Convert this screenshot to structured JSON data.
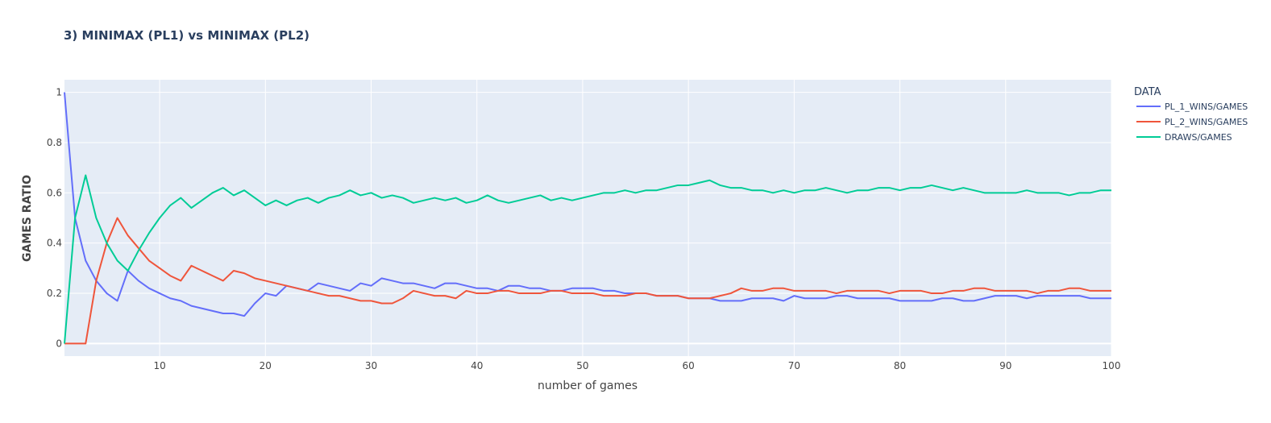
{
  "chart_data": {
    "type": "line",
    "title": "3) MINIMAX (PL1) vs MINIMAX (PL2)",
    "xlabel": "number of games",
    "ylabel": "GAMES RATIO",
    "xlim": [
      1,
      100
    ],
    "ylim": [
      -0.05,
      1.05
    ],
    "x_ticks": [
      10,
      20,
      30,
      40,
      50,
      60,
      70,
      80,
      90,
      100
    ],
    "y_ticks": [
      0,
      0.2,
      0.4,
      0.6,
      0.8,
      1
    ],
    "y_tick_labels": [
      "0",
      "0.2",
      "0.4",
      "0.6",
      "0.8",
      "1"
    ],
    "grid": true,
    "plot_background": "#e5ecf6",
    "legend_title": "DATA",
    "legend_position": "right",
    "x": [
      1,
      2,
      3,
      4,
      5,
      6,
      7,
      8,
      9,
      10,
      11,
      12,
      13,
      14,
      15,
      16,
      17,
      18,
      19,
      20,
      21,
      22,
      23,
      24,
      25,
      26,
      27,
      28,
      29,
      30,
      31,
      32,
      33,
      34,
      35,
      36,
      37,
      38,
      39,
      40,
      41,
      42,
      43,
      44,
      45,
      46,
      47,
      48,
      49,
      50,
      51,
      52,
      53,
      54,
      55,
      56,
      57,
      58,
      59,
      60,
      61,
      62,
      63,
      64,
      65,
      66,
      67,
      68,
      69,
      70,
      71,
      72,
      73,
      74,
      75,
      76,
      77,
      78,
      79,
      80,
      81,
      82,
      83,
      84,
      85,
      86,
      87,
      88,
      89,
      90,
      91,
      92,
      93,
      94,
      95,
      96,
      97,
      98,
      99,
      100
    ],
    "series": [
      {
        "name": "PL_1_WINS/GAMES",
        "color": "#636efa",
        "values": [
          1.0,
          0.5,
          0.33,
          0.25,
          0.2,
          0.17,
          0.29,
          0.25,
          0.22,
          0.2,
          0.18,
          0.17,
          0.15,
          0.14,
          0.13,
          0.12,
          0.12,
          0.11,
          0.16,
          0.2,
          0.19,
          0.23,
          0.22,
          0.21,
          0.24,
          0.23,
          0.22,
          0.21,
          0.24,
          0.23,
          0.26,
          0.25,
          0.24,
          0.24,
          0.23,
          0.22,
          0.24,
          0.24,
          0.23,
          0.22,
          0.22,
          0.21,
          0.23,
          0.23,
          0.22,
          0.22,
          0.21,
          0.21,
          0.22,
          0.22,
          0.22,
          0.21,
          0.21,
          0.2,
          0.2,
          0.2,
          0.19,
          0.19,
          0.19,
          0.18,
          0.18,
          0.18,
          0.17,
          0.17,
          0.17,
          0.18,
          0.18,
          0.18,
          0.17,
          0.19,
          0.18,
          0.18,
          0.18,
          0.19,
          0.19,
          0.18,
          0.18,
          0.18,
          0.18,
          0.17,
          0.17,
          0.17,
          0.17,
          0.18,
          0.18,
          0.17,
          0.17,
          0.18,
          0.19,
          0.19,
          0.19,
          0.18,
          0.19,
          0.19,
          0.19,
          0.19,
          0.19,
          0.18,
          0.18,
          0.18
        ]
      },
      {
        "name": "PL_2_WINS/GAMES",
        "color": "#ef553b",
        "values": [
          0.0,
          0.0,
          0.0,
          0.25,
          0.4,
          0.5,
          0.43,
          0.38,
          0.33,
          0.3,
          0.27,
          0.25,
          0.31,
          0.29,
          0.27,
          0.25,
          0.29,
          0.28,
          0.26,
          0.25,
          0.24,
          0.23,
          0.22,
          0.21,
          0.2,
          0.19,
          0.19,
          0.18,
          0.17,
          0.17,
          0.16,
          0.16,
          0.18,
          0.21,
          0.2,
          0.19,
          0.19,
          0.18,
          0.21,
          0.2,
          0.2,
          0.21,
          0.21,
          0.2,
          0.2,
          0.2,
          0.21,
          0.21,
          0.2,
          0.2,
          0.2,
          0.19,
          0.19,
          0.19,
          0.2,
          0.2,
          0.19,
          0.19,
          0.19,
          0.18,
          0.18,
          0.18,
          0.19,
          0.2,
          0.22,
          0.21,
          0.21,
          0.22,
          0.22,
          0.21,
          0.21,
          0.21,
          0.21,
          0.2,
          0.21,
          0.21,
          0.21,
          0.21,
          0.2,
          0.21,
          0.21,
          0.21,
          0.2,
          0.2,
          0.21,
          0.21,
          0.22,
          0.22,
          0.21,
          0.21,
          0.21,
          0.21,
          0.2,
          0.21,
          0.21,
          0.22,
          0.22,
          0.21,
          0.21,
          0.21
        ]
      },
      {
        "name": "DRAWS/GAMES",
        "color": "#00cc96",
        "values": [
          0.0,
          0.5,
          0.67,
          0.5,
          0.4,
          0.33,
          0.29,
          0.37,
          0.44,
          0.5,
          0.55,
          0.58,
          0.54,
          0.57,
          0.6,
          0.62,
          0.59,
          0.61,
          0.58,
          0.55,
          0.57,
          0.55,
          0.57,
          0.58,
          0.56,
          0.58,
          0.59,
          0.61,
          0.59,
          0.6,
          0.58,
          0.59,
          0.58,
          0.56,
          0.57,
          0.58,
          0.57,
          0.58,
          0.56,
          0.57,
          0.59,
          0.57,
          0.56,
          0.57,
          0.58,
          0.59,
          0.57,
          0.58,
          0.57,
          0.58,
          0.59,
          0.6,
          0.6,
          0.61,
          0.6,
          0.61,
          0.61,
          0.62,
          0.63,
          0.63,
          0.64,
          0.65,
          0.63,
          0.62,
          0.62,
          0.61,
          0.61,
          0.6,
          0.61,
          0.6,
          0.61,
          0.61,
          0.62,
          0.61,
          0.6,
          0.61,
          0.61,
          0.62,
          0.62,
          0.61,
          0.62,
          0.62,
          0.63,
          0.62,
          0.61,
          0.62,
          0.61,
          0.6,
          0.6,
          0.6,
          0.6,
          0.61,
          0.6,
          0.6,
          0.6,
          0.59,
          0.6,
          0.6,
          0.61,
          0.61
        ]
      }
    ]
  }
}
